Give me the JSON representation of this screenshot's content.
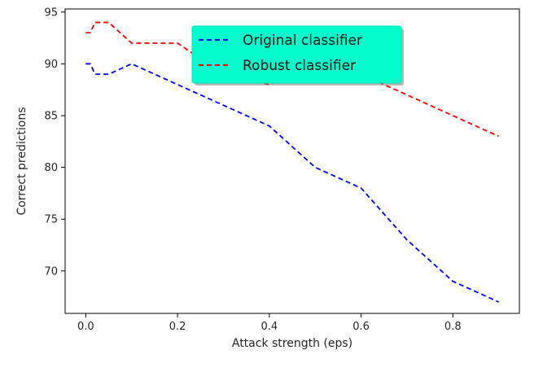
{
  "chart_data": {
    "type": "line",
    "title": "",
    "xlabel": "Attack strength (eps)",
    "ylabel": "Correct predictions",
    "xlim": [
      -0.045,
      0.945
    ],
    "ylim": [
      65.9,
      95.3
    ],
    "xticks": [
      0.0,
      0.2,
      0.4,
      0.6,
      0.8
    ],
    "xtick_labels": [
      "0.0",
      "0.2",
      "0.4",
      "0.6",
      "0.8"
    ],
    "yticks": [
      70,
      75,
      80,
      85,
      90,
      95
    ],
    "ytick_labels": [
      "70",
      "75",
      "80",
      "85",
      "90",
      "95"
    ],
    "grid": false,
    "legend": {
      "location": "upper center",
      "background": "#00ffcc",
      "shadow": true
    },
    "series": [
      {
        "name": "Original classifier",
        "color": "#0000ff",
        "linestyle": "dashed",
        "x": [
          0.0,
          0.01,
          0.02,
          0.03,
          0.04,
          0.05,
          0.1,
          0.2,
          0.3,
          0.4,
          0.5,
          0.6,
          0.7,
          0.8,
          0.9
        ],
        "values": [
          90,
          90,
          89,
          89,
          89,
          89,
          90,
          88,
          86,
          84,
          80,
          78,
          73,
          69,
          67
        ]
      },
      {
        "name": "Robust classifier",
        "color": "#ff0000",
        "linestyle": "dashed",
        "x": [
          0.0,
          0.01,
          0.02,
          0.03,
          0.04,
          0.05,
          0.1,
          0.2,
          0.3,
          0.4,
          0.5,
          0.6,
          0.7,
          0.8,
          0.9
        ],
        "values": [
          93,
          93,
          94,
          94,
          94,
          94,
          92,
          92,
          89,
          88,
          90,
          89,
          87,
          85,
          83
        ]
      }
    ]
  }
}
